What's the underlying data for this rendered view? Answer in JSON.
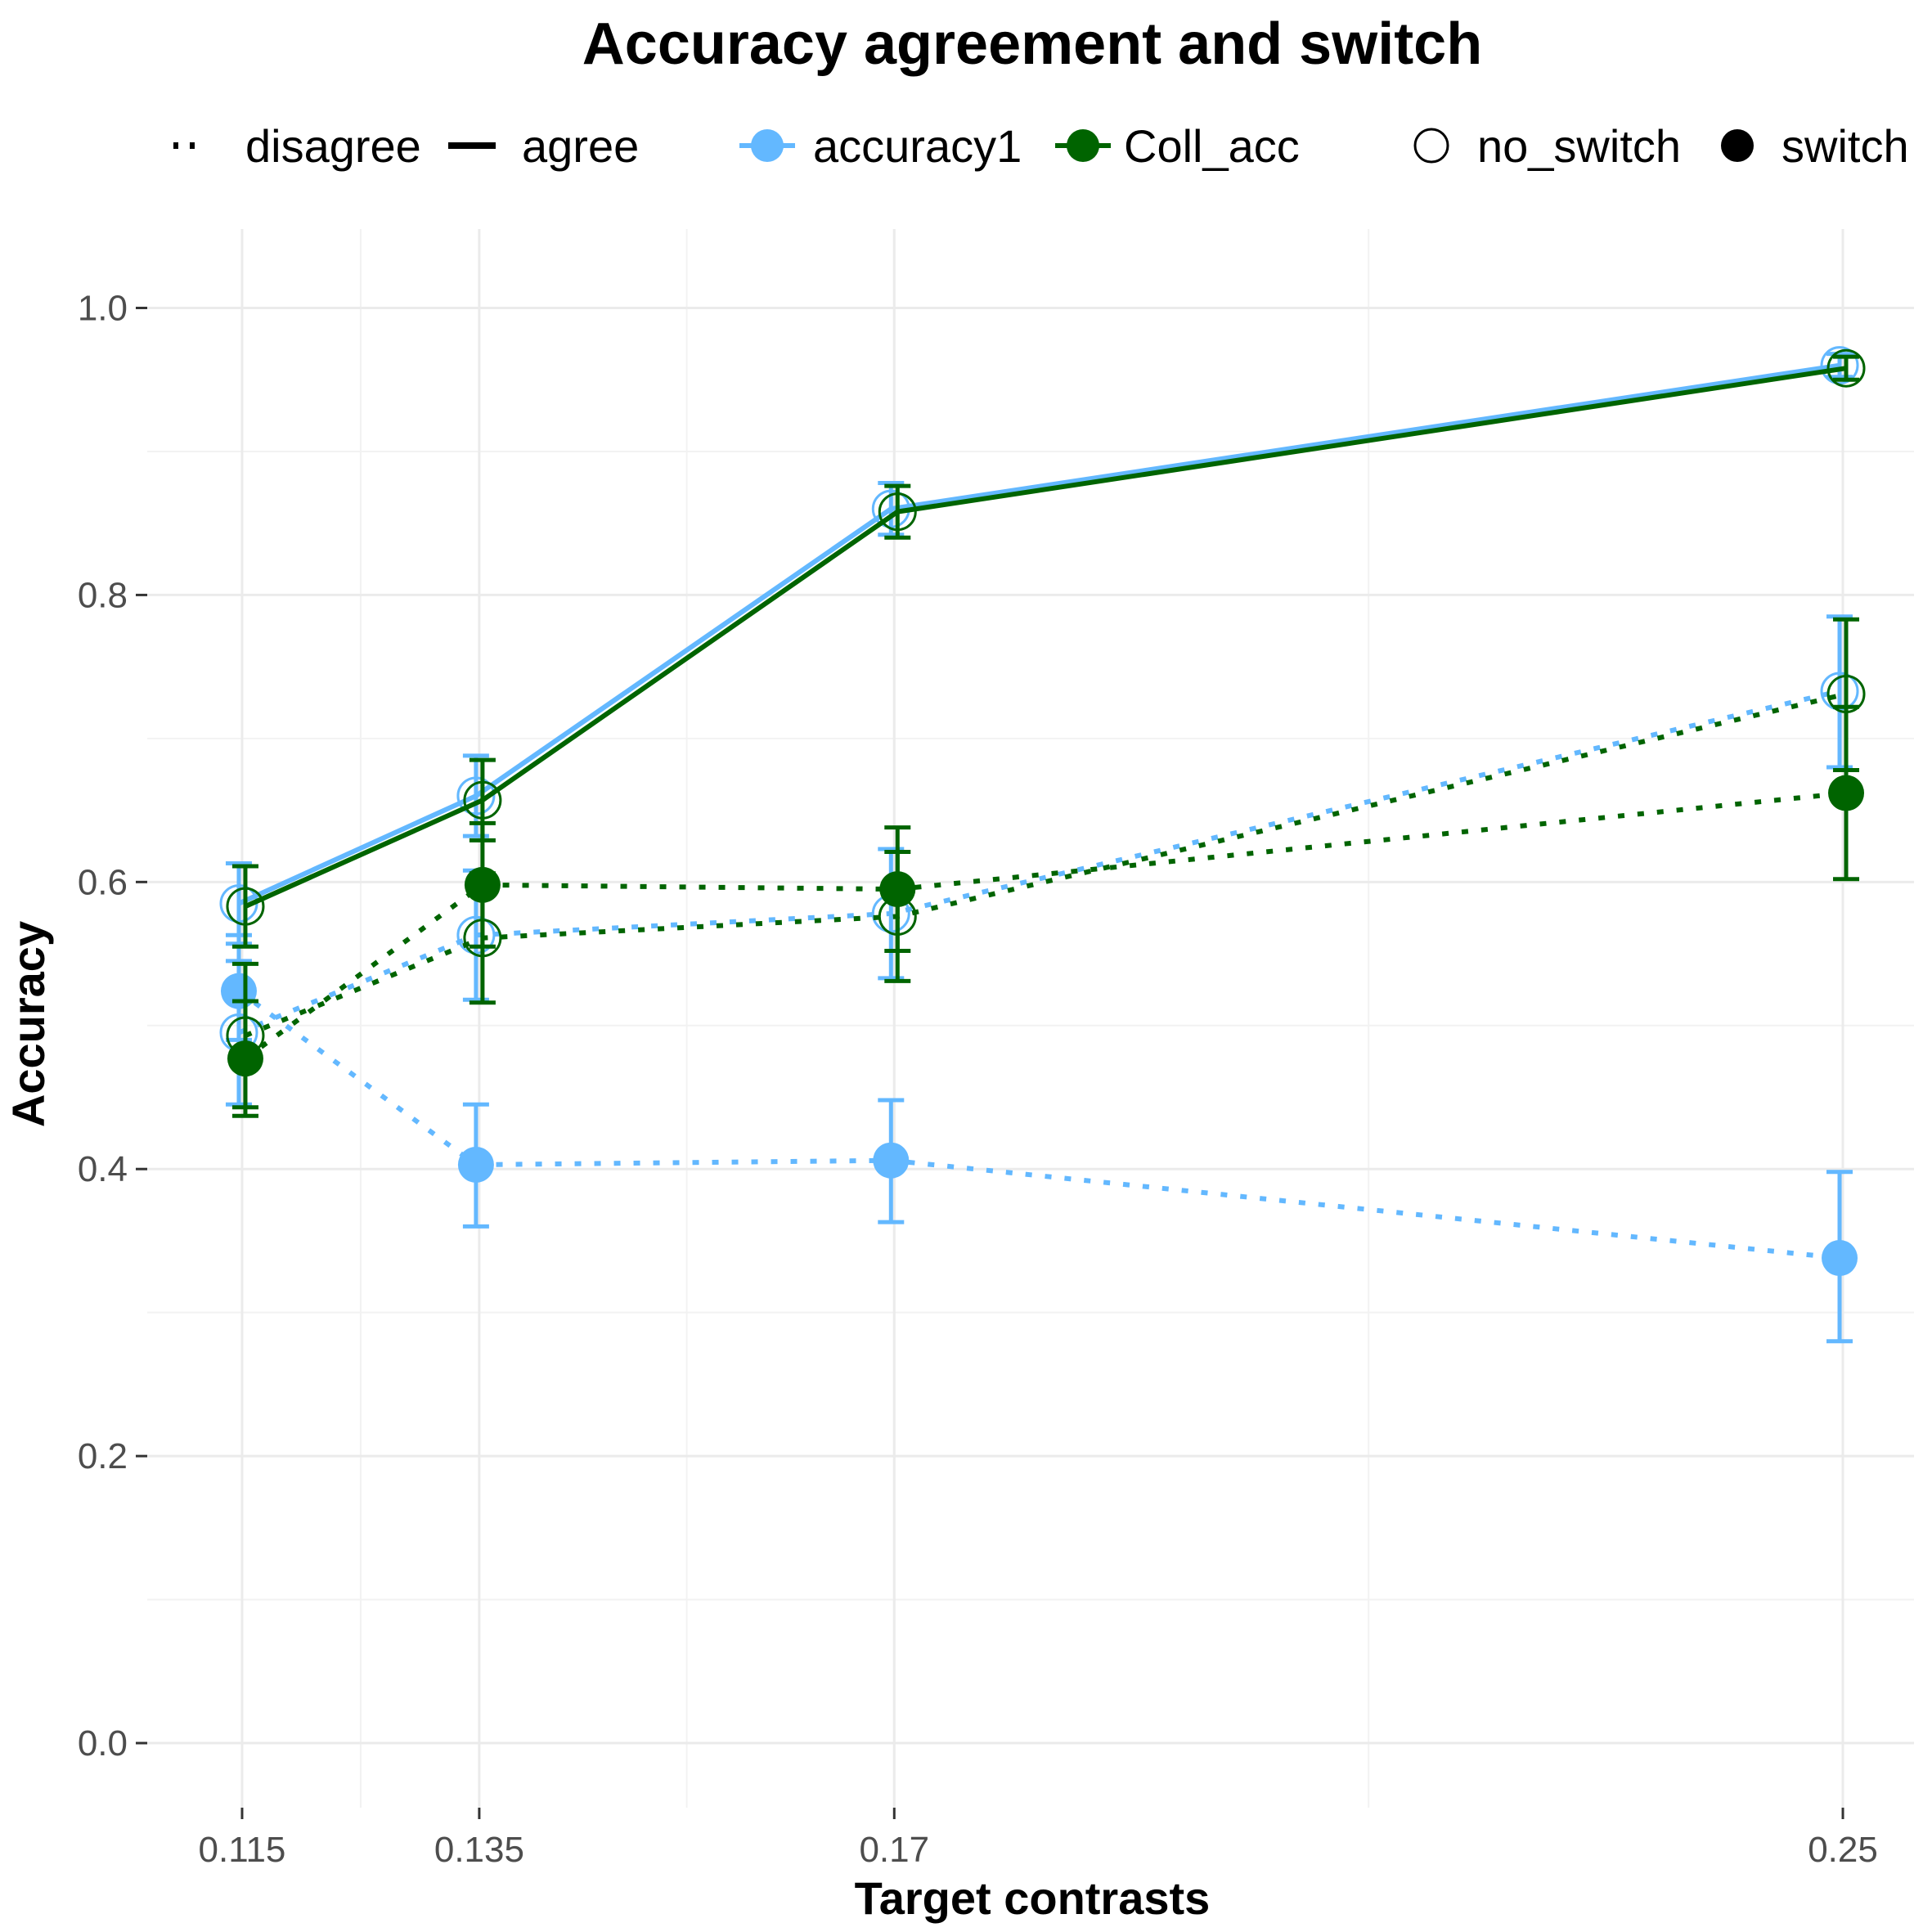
{
  "chart_data": {
    "type": "line",
    "title": "Accuracy agreement and switch",
    "xlabel": "Target contrasts",
    "ylabel": "Accuracy",
    "x": [
      0.115,
      0.135,
      0.17,
      0.25
    ],
    "x_tick_labels": [
      "0.115",
      "0.135",
      "0.17",
      "0.25"
    ],
    "xlim": [
      0.107,
      0.256
    ],
    "ylim": [
      -0.045,
      1.055
    ],
    "y_ticks": [
      0.0,
      0.2,
      0.4,
      0.6,
      0.8,
      1.0
    ],
    "y_tick_labels": [
      "0.0",
      "0.2",
      "0.4",
      "0.6",
      "0.8",
      "1.0"
    ],
    "grid": true,
    "legend_position": "top",
    "legend": {
      "linetype": [
        {
          "label": "disagree",
          "style": "dotted"
        },
        {
          "label": "agree",
          "style": "solid"
        }
      ],
      "color": [
        {
          "label": "accuracy1",
          "color": "#63B8FF"
        },
        {
          "label": "Coll_acc",
          "color": "#006400"
        }
      ],
      "shape": [
        {
          "label": "no_switch",
          "fill": "open"
        },
        {
          "label": "switch",
          "fill": "filled"
        }
      ]
    },
    "series": [
      {
        "variable": "accuracy1",
        "agreement": "agree",
        "switch": "no_switch",
        "values": [
          0.585,
          0.66,
          0.86,
          0.96
        ],
        "ci_low": [
          0.557,
          0.632,
          0.842,
          0.952
        ],
        "ci_high": [
          0.613,
          0.688,
          0.878,
          0.968
        ]
      },
      {
        "variable": "Coll_acc",
        "agreement": "agree",
        "switch": "no_switch",
        "values": [
          0.583,
          0.657,
          0.858,
          0.958
        ],
        "ci_low": [
          0.555,
          0.629,
          0.84,
          0.95
        ],
        "ci_high": [
          0.611,
          0.685,
          0.876,
          0.966
        ]
      },
      {
        "variable": "accuracy1",
        "agreement": "disagree",
        "switch": "no_switch",
        "values": [
          0.495,
          0.563,
          0.578,
          0.733
        ],
        "ci_low": [
          0.445,
          0.518,
          0.533,
          0.68
        ],
        "ci_high": [
          0.545,
          0.608,
          0.623,
          0.785
        ]
      },
      {
        "variable": "Coll_acc",
        "agreement": "disagree",
        "switch": "no_switch",
        "values": [
          0.493,
          0.561,
          0.576,
          0.731
        ],
        "ci_low": [
          0.443,
          0.516,
          0.531,
          0.678
        ],
        "ci_high": [
          0.543,
          0.606,
          0.621,
          0.783
        ]
      },
      {
        "variable": "accuracy1",
        "agreement": "disagree",
        "switch": "switch",
        "values": [
          0.524,
          0.403,
          0.406,
          0.338
        ],
        "ci_low": [
          0.49,
          0.36,
          0.363,
          0.28
        ],
        "ci_high": [
          0.563,
          0.445,
          0.448,
          0.398
        ]
      },
      {
        "variable": "Coll_acc",
        "agreement": "disagree",
        "switch": "switch",
        "values": [
          0.477,
          0.598,
          0.595,
          0.662
        ],
        "ci_low": [
          0.437,
          0.555,
          0.552,
          0.602
        ],
        "ci_high": [
          0.517,
          0.641,
          0.638,
          0.722
        ]
      }
    ]
  }
}
